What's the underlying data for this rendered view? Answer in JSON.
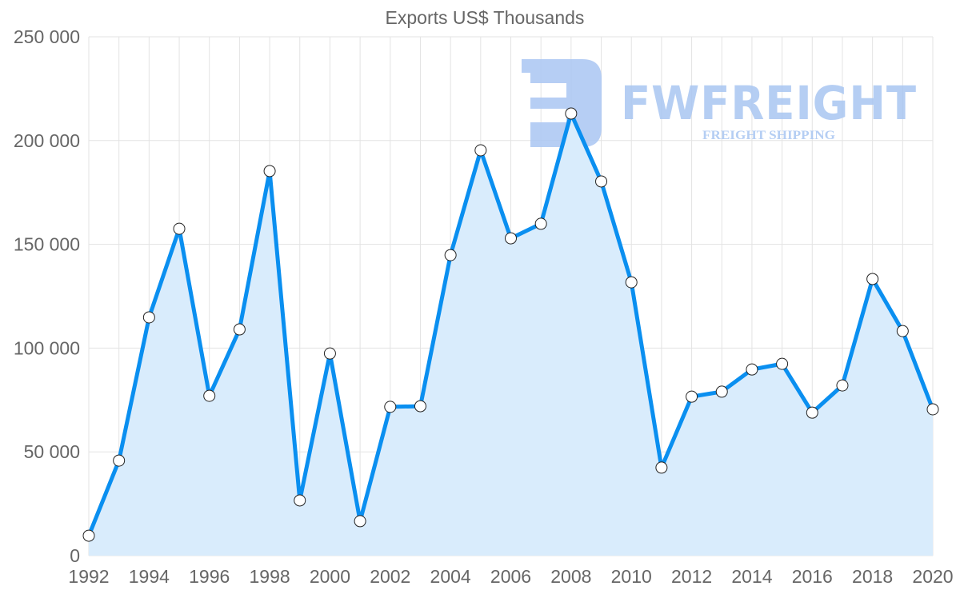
{
  "chart_data": {
    "type": "area",
    "title": "Exports US$ Thousands",
    "xlabel": "",
    "ylabel": "",
    "ylim": [
      0,
      250000
    ],
    "y_ticks": [
      0,
      50000,
      100000,
      150000,
      200000,
      250000
    ],
    "y_tick_labels": [
      "0",
      "50 000",
      "100 000",
      "150 000",
      "200 000",
      "250 000"
    ],
    "x_tick_labels": [
      "1992",
      "1994",
      "1996",
      "1998",
      "2000",
      "2002",
      "2004",
      "2006",
      "2008",
      "2010",
      "2012",
      "2014",
      "2016",
      "2018",
      "2020"
    ],
    "grid": true,
    "legend": "none",
    "series": [
      {
        "name": "Exports US$ Thousands",
        "color": "#0a8ff0",
        "fill": "#d9ecfc",
        "x": [
          1992,
          1993,
          1994,
          1995,
          1996,
          1997,
          1998,
          1999,
          2000,
          2001,
          2002,
          2003,
          2004,
          2005,
          2006,
          2007,
          2008,
          2009,
          2010,
          2011,
          2012,
          2013,
          2014,
          2015,
          2016,
          2017,
          2018,
          2019,
          2020
        ],
        "values": [
          9600,
          45800,
          114800,
          157500,
          77000,
          109000,
          185300,
          26600,
          97400,
          16600,
          71700,
          72000,
          144800,
          195300,
          152900,
          159900,
          213000,
          180300,
          131700,
          42400,
          76600,
          79000,
          89700,
          92400,
          68900,
          82000,
          133300,
          108200,
          70500
        ]
      }
    ]
  },
  "watermark": {
    "brand": "FWFREIGHT",
    "tagline": "FREIGHT SHIPPING",
    "color": "#a9c6f2"
  }
}
